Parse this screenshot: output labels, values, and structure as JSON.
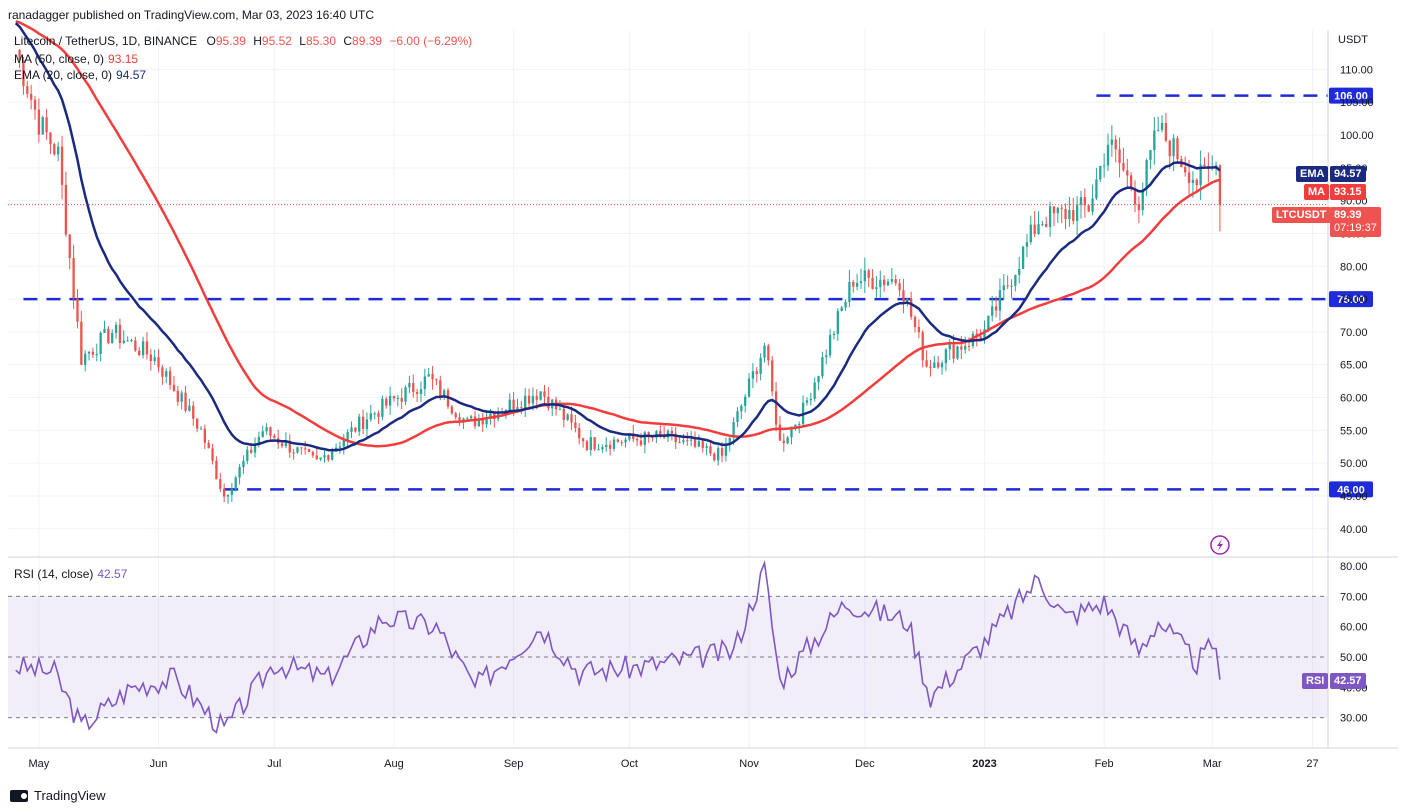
{
  "header": {
    "publisher": "ranadagger published on TradingView.com, Mar 03, 2023 16:40 UTC"
  },
  "legend": {
    "symbol": "Litecoin / TetherUS, 1D, BINANCE",
    "o_label": "O",
    "o_value": "95.39",
    "h_label": "H",
    "h_value": "95.52",
    "l_label": "L",
    "l_value": "85.30",
    "c_label": "C",
    "c_value": "89.39",
    "change": "−6.00 (−6.29%)",
    "ma_label": "MA (50, close, 0)",
    "ma_value": "93.15",
    "ema_label": "EMA (20, close, 0)",
    "ema_value": "94.57",
    "rsi_label": "RSI (14, close)",
    "rsi_value": "42.57"
  },
  "price_labels": {
    "ema_tag": "EMA",
    "ema_value": "94.57",
    "ma_tag": "MA",
    "ma_value": "93.15",
    "symbol_tag": "LTCUSDT",
    "last_price": "89.39",
    "countdown": "07:19:37",
    "rsi_tag": "RSI",
    "rsi_value": "42.57",
    "currency": "USDT"
  },
  "footer": {
    "brand": "TradingView"
  },
  "colors": {
    "ema": "#1a2a80",
    "ma": "#f23d3d",
    "up": "#26a69a",
    "down": "#ef5350",
    "rsi": "#7e57c2",
    "level": "#1e2bd6"
  },
  "chart_data": [
    {
      "type": "candlestick",
      "title": "Litecoin / TetherUS, 1D, BINANCE",
      "ylabel": "USDT",
      "ylim": [
        36,
        116
      ],
      "grid": true,
      "x_ticks": [
        "May",
        "Jun",
        "Jul",
        "Aug",
        "Sep",
        "Oct",
        "Nov",
        "Dec",
        "2023",
        "Feb",
        "Mar",
        "27"
      ],
      "y_ticks": [
        40,
        45,
        50,
        55,
        60,
        65,
        70,
        75,
        80,
        85,
        90,
        95,
        100,
        105,
        110
      ],
      "y_tick_labels": [
        "40.00",
        "45.00",
        "50.00",
        "55.00",
        "60.00",
        "65.00",
        "70.00",
        "75.00",
        "80.00",
        "85.00",
        "90.00",
        "95.00",
        "100.00",
        "105.00",
        "110.00"
      ],
      "levels": [
        {
          "value": 106,
          "label": "106.00"
        },
        {
          "value": 75,
          "label": "75.00"
        },
        {
          "value": 46,
          "label": "46.00"
        }
      ],
      "close_anchors": [
        {
          "date": "2022-04-25",
          "close": 113
        },
        {
          "date": "2022-05-01",
          "close": 102
        },
        {
          "date": "2022-05-06",
          "close": 97
        },
        {
          "date": "2022-05-10",
          "close": 76
        },
        {
          "date": "2022-05-12",
          "close": 66
        },
        {
          "date": "2022-05-20",
          "close": 70
        },
        {
          "date": "2022-05-31",
          "close": 66
        },
        {
          "date": "2022-06-12",
          "close": 55
        },
        {
          "date": "2022-06-18",
          "close": 45
        },
        {
          "date": "2022-06-28",
          "close": 55
        },
        {
          "date": "2022-07-12",
          "close": 50
        },
        {
          "date": "2022-07-25",
          "close": 57
        },
        {
          "date": "2022-08-10",
          "close": 63
        },
        {
          "date": "2022-08-20",
          "close": 56
        },
        {
          "date": "2022-09-08",
          "close": 61
        },
        {
          "date": "2022-09-20",
          "close": 53
        },
        {
          "date": "2022-10-10",
          "close": 54
        },
        {
          "date": "2022-10-25",
          "close": 51
        },
        {
          "date": "2022-11-05",
          "close": 68
        },
        {
          "date": "2022-11-09",
          "close": 53
        },
        {
          "date": "2022-11-15",
          "close": 58
        },
        {
          "date": "2022-11-28",
          "close": 78
        },
        {
          "date": "2022-12-10",
          "close": 78
        },
        {
          "date": "2022-12-17",
          "close": 65
        },
        {
          "date": "2023-01-01",
          "close": 70
        },
        {
          "date": "2023-01-15",
          "close": 87
        },
        {
          "date": "2023-01-28",
          "close": 89
        },
        {
          "date": "2023-02-02",
          "close": 99
        },
        {
          "date": "2023-02-10",
          "close": 90
        },
        {
          "date": "2023-02-15",
          "close": 101
        },
        {
          "date": "2023-02-25",
          "close": 93
        },
        {
          "date": "2023-03-02",
          "close": 95.39
        },
        {
          "date": "2023-03-03",
          "close": 89.39
        }
      ],
      "last_candle": {
        "date": "2023-03-03",
        "open": 95.39,
        "high": 95.52,
        "low": 85.3,
        "close": 89.39
      },
      "ma_50_last": 93.15,
      "ema_20_last": 94.57
    },
    {
      "type": "line",
      "title": "RSI (14, close)",
      "ylim": [
        20,
        82
      ],
      "y_ticks": [
        30,
        40,
        50,
        60,
        70,
        80
      ],
      "y_tick_labels": [
        "30.00",
        "40.00",
        "50.00",
        "60.00",
        "70.00",
        "80.00"
      ],
      "bands": [
        30,
        70
      ],
      "mid": 50,
      "anchors": [
        {
          "date": "2022-04-25",
          "value": 47
        },
        {
          "date": "2022-05-05",
          "value": 45
        },
        {
          "date": "2022-05-12",
          "value": 27
        },
        {
          "date": "2022-05-25",
          "value": 40
        },
        {
          "date": "2022-06-05",
          "value": 43
        },
        {
          "date": "2022-06-18",
          "value": 26
        },
        {
          "date": "2022-07-01",
          "value": 48
        },
        {
          "date": "2022-07-15",
          "value": 43
        },
        {
          "date": "2022-07-29",
          "value": 63
        },
        {
          "date": "2022-08-12",
          "value": 60
        },
        {
          "date": "2022-08-22",
          "value": 40
        },
        {
          "date": "2022-09-08",
          "value": 60
        },
        {
          "date": "2022-09-18",
          "value": 45
        },
        {
          "date": "2022-10-05",
          "value": 47
        },
        {
          "date": "2022-10-28",
          "value": 52
        },
        {
          "date": "2022-11-05",
          "value": 79
        },
        {
          "date": "2022-11-09",
          "value": 42
        },
        {
          "date": "2022-11-26",
          "value": 68
        },
        {
          "date": "2022-12-12",
          "value": 62
        },
        {
          "date": "2022-12-18",
          "value": 37
        },
        {
          "date": "2023-01-01",
          "value": 55
        },
        {
          "date": "2023-01-15",
          "value": 76
        },
        {
          "date": "2023-01-22",
          "value": 63
        },
        {
          "date": "2023-02-01",
          "value": 68
        },
        {
          "date": "2023-02-10",
          "value": 52
        },
        {
          "date": "2023-02-15",
          "value": 62
        },
        {
          "date": "2023-02-25",
          "value": 48
        },
        {
          "date": "2023-03-02",
          "value": 55
        },
        {
          "date": "2023-03-03",
          "value": 42.57
        }
      ]
    }
  ]
}
